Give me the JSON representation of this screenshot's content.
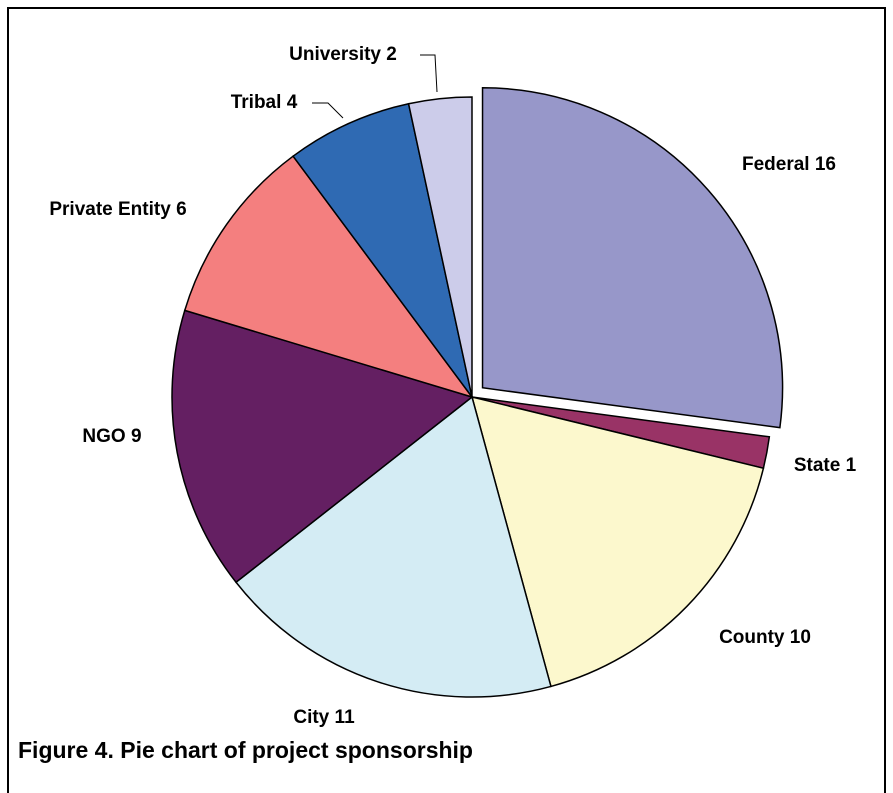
{
  "chart_data": {
    "type": "pie",
    "caption": "Figure 4.  Pie chart of project sponsorship",
    "categories": [
      "Federal",
      "State",
      "County",
      "City",
      "NGO",
      "Private Entity",
      "Tribal",
      "University"
    ],
    "values": [
      16,
      1,
      10,
      11,
      9,
      6,
      4,
      2
    ],
    "colors": [
      "#9797c9",
      "#993366",
      "#fcf8cd",
      "#d4ecf4",
      "#641f62",
      "#f47f7f",
      "#2f6ab3",
      "#ccccea"
    ],
    "exploded": "Federal"
  }
}
